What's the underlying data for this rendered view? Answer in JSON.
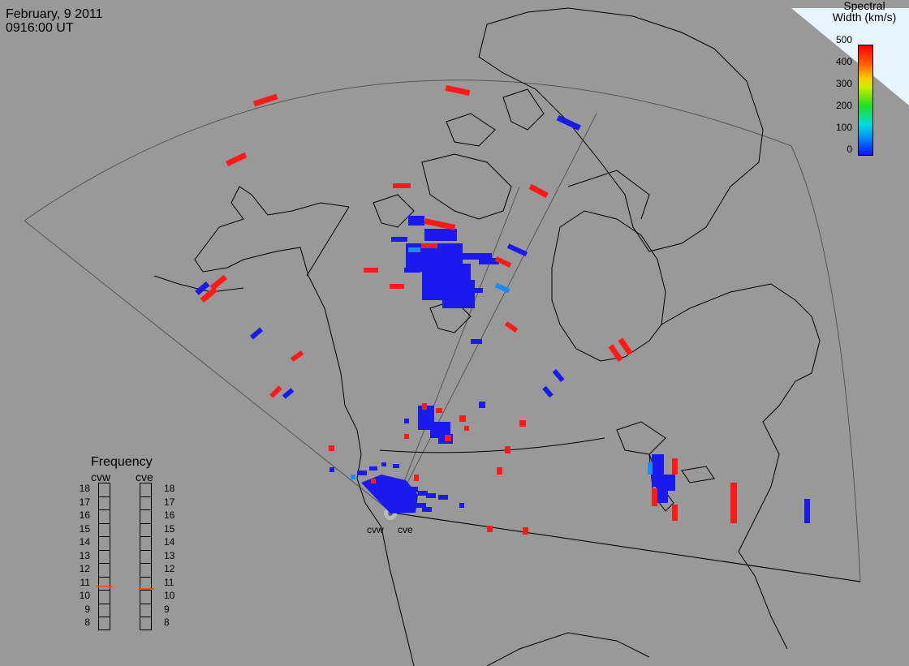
{
  "header": {
    "date": "February, 9 2011",
    "time": "0916:00 UT"
  },
  "colorbar": {
    "title_line1": "Spectral",
    "title_line2": "Width (km/s)",
    "ticks": [
      "500",
      "400",
      "300",
      "200",
      "100",
      "0"
    ],
    "colors": [
      "#ff0000",
      "#ff8800",
      "#ffee00",
      "#22dd22",
      "#00dddd",
      "#1133ff"
    ]
  },
  "frequency": {
    "title": "Frequency",
    "radars": [
      "cvw",
      "cve"
    ],
    "levels": [
      "18",
      "17",
      "16",
      "15",
      "14",
      "13",
      "12",
      "11",
      "10",
      "9",
      "8"
    ],
    "cvw_value": 10.8,
    "cve_value": 10.6,
    "marker_color": "#e05a1a"
  },
  "radars": {
    "cvw_label": "cvw",
    "cve_label": "cve"
  }
}
